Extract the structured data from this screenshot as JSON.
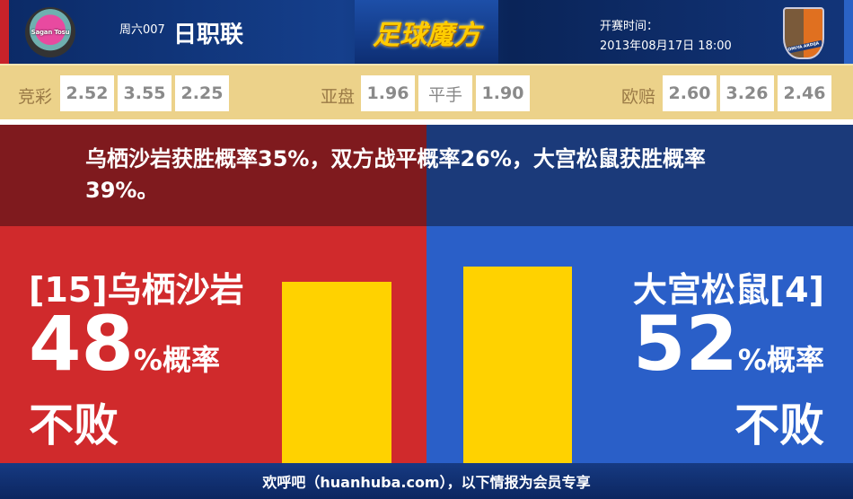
{
  "header": {
    "match_no": "周六007",
    "league": "日职联",
    "brand": "足球魔方",
    "time_label": "开赛时间：",
    "time_value": "2013年08月17日 18:00",
    "home_logo_text": "Sagan Tosu",
    "away_logo_text": "Omiya Ardija"
  },
  "odds": [
    {
      "label": "竞彩",
      "values": [
        "2.52",
        "3.55",
        "2.25"
      ]
    },
    {
      "label": "亚盘",
      "values": [
        "1.96",
        "平手",
        "1.90"
      ]
    },
    {
      "label": "欧赔",
      "values": [
        "2.60",
        "3.26",
        "2.46"
      ]
    }
  ],
  "summary": "乌栖沙岩获胜概率35%，双方战平概率26%，大宫松鼠获胜概率39%。",
  "home": {
    "name": "[15]乌栖沙岩",
    "percent": "48",
    "unit": "%概率",
    "outcome": "不败",
    "bar_value": 48
  },
  "away": {
    "name": "大宫松鼠[4]",
    "percent": "52",
    "unit": "%概率",
    "outcome": "不败",
    "bar_value": 52
  },
  "footer": "欢呼吧（huanhuba.com），以下情报为会员专享",
  "colors": {
    "home": "#d02a2c",
    "away": "#2a5fc8",
    "bar": "#ffd200",
    "odds_bg": "#ecd28a"
  }
}
